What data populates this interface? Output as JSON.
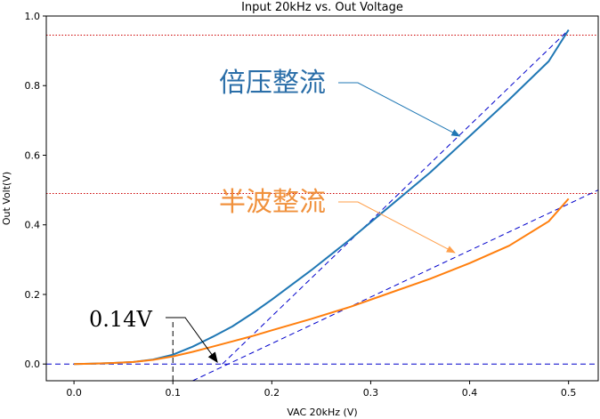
{
  "chart_data": {
    "type": "line",
    "title": "Input 20kHz vs. Out Voltage",
    "xlabel": "VAC 20kHz (V)",
    "ylabel": "Out Volt(V)",
    "xlim": [
      -0.028,
      0.53
    ],
    "ylim": [
      -0.048,
      1.0
    ],
    "xticks": [
      0.0,
      0.1,
      0.2,
      0.3,
      0.4,
      0.5
    ],
    "xtick_labels": [
      "0.0",
      "0.1",
      "0.2",
      "0.3",
      "0.4",
      "0.5"
    ],
    "yticks": [
      0.0,
      0.2,
      0.4,
      0.6,
      0.8,
      1.0
    ],
    "ytick_labels": [
      "0.0",
      "0.2",
      "0.4",
      "0.6",
      "0.8",
      "1.0"
    ],
    "series": [
      {
        "name": "倍压整流",
        "color": "#1f77b4",
        "x": [
          0.0,
          0.02,
          0.04,
          0.06,
          0.08,
          0.1,
          0.12,
          0.14,
          0.16,
          0.18,
          0.2,
          0.24,
          0.28,
          0.32,
          0.36,
          0.4,
          0.44,
          0.48,
          0.5
        ],
        "y": [
          0.0,
          0.001,
          0.003,
          0.006,
          0.013,
          0.027,
          0.05,
          0.078,
          0.108,
          0.145,
          0.185,
          0.27,
          0.36,
          0.455,
          0.55,
          0.655,
          0.76,
          0.87,
          0.96
        ]
      },
      {
        "name": "半波整流",
        "color": "#ff7f0e",
        "x": [
          0.0,
          0.02,
          0.04,
          0.06,
          0.08,
          0.1,
          0.12,
          0.14,
          0.16,
          0.18,
          0.2,
          0.24,
          0.28,
          0.32,
          0.36,
          0.4,
          0.44,
          0.48,
          0.5
        ],
        "y": [
          0.0,
          0.001,
          0.003,
          0.006,
          0.012,
          0.022,
          0.035,
          0.05,
          0.065,
          0.08,
          0.097,
          0.13,
          0.165,
          0.205,
          0.245,
          0.29,
          0.34,
          0.41,
          0.475
        ]
      }
    ],
    "reference_lines": [
      {
        "name": "double-level",
        "kind": "horizontal",
        "y": 0.945,
        "color": "#cc0000",
        "style": "dotted"
      },
      {
        "name": "half-level",
        "kind": "horizontal",
        "y": 0.49,
        "color": "#cc0000",
        "style": "dotted"
      },
      {
        "name": "zero-level",
        "kind": "horizontal",
        "y": 0.0,
        "color": "#0000cc",
        "style": "dashed"
      },
      {
        "name": "double-tangent",
        "kind": "segment",
        "x1": 0.15,
        "y1": 0.0,
        "x2": 0.5,
        "y2": 0.96,
        "color": "#0000cc",
        "style": "dashed"
      },
      {
        "name": "half-tangent",
        "kind": "segment",
        "x1": 0.12,
        "y1": -0.048,
        "x2": 0.53,
        "y2": 0.5,
        "color": "#0000cc",
        "style": "dashed"
      },
      {
        "name": "threshold-marker",
        "kind": "vertical",
        "x": 0.1,
        "y1": -0.048,
        "y2": 0.13,
        "color": "#000000",
        "style": "dashed"
      }
    ],
    "annotations": [
      {
        "name": "annot-double",
        "text": "倍压整流",
        "color": "#2a6ea8",
        "target": [
          0.39,
          0.655
        ]
      },
      {
        "name": "annot-half",
        "text": "半波整流",
        "color": "#f0913c",
        "target": [
          0.385,
          0.32
        ]
      },
      {
        "name": "annot-threshold",
        "text": "0.14V",
        "color": "#000000",
        "target": [
          0.145,
          0.0
        ]
      }
    ],
    "grid": false
  }
}
